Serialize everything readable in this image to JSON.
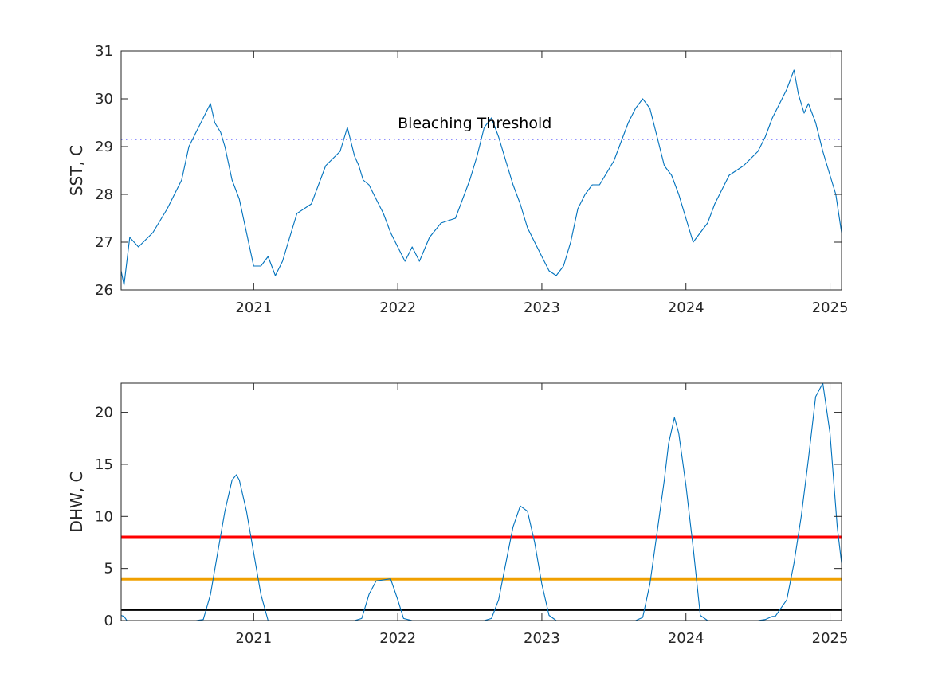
{
  "colors": {
    "series": "#0072bd",
    "threshold_line": "#6a6aff",
    "axes": "#262626",
    "dhw_red": "#ff0000",
    "dhw_orange": "#f0a000",
    "dhw_black": "#000000"
  },
  "chart_data": [
    {
      "type": "line",
      "title": "",
      "xlabel": "",
      "ylabel": "SST, C",
      "xlim": [
        2020.08,
        2025.08
      ],
      "ylim": [
        26,
        31
      ],
      "x_ticks": [
        2021,
        2022,
        2023,
        2024,
        2025
      ],
      "x_tick_labels": [
        "2021",
        "2022",
        "2023",
        "2024",
        "2025"
      ],
      "y_ticks": [
        26,
        27,
        28,
        29,
        30,
        31
      ],
      "y_tick_labels": [
        "26",
        "27",
        "28",
        "29",
        "30",
        "31"
      ],
      "grid": false,
      "series": [
        {
          "x": [
            2020.08,
            2020.1,
            2020.14,
            2020.2,
            2020.3,
            2020.4,
            2020.5,
            2020.55,
            2020.6,
            2020.65,
            2020.7,
            2020.73,
            2020.77,
            2020.8,
            2020.85,
            2020.9,
            2020.95,
            2021.0,
            2021.05,
            2021.1,
            2021.15,
            2021.2,
            2021.25,
            2021.3,
            2021.4,
            2021.5,
            2021.6,
            2021.65,
            2021.7,
            2021.73,
            2021.76,
            2021.8,
            2021.85,
            2021.9,
            2021.95,
            2022.0,
            2022.05,
            2022.1,
            2022.15,
            2022.22,
            2022.3,
            2022.4,
            2022.5,
            2022.55,
            2022.6,
            2022.65,
            2022.7,
            2022.72,
            2022.75,
            2022.8,
            2022.85,
            2022.9,
            2022.95,
            2023.0,
            2023.05,
            2023.1,
            2023.15,
            2023.2,
            2023.25,
            2023.3,
            2023.35,
            2023.4,
            2023.5,
            2023.6,
            2023.65,
            2023.7,
            2023.75,
            2023.8,
            2023.85,
            2023.9,
            2023.95,
            2024.0,
            2024.05,
            2024.1,
            2024.15,
            2024.2,
            2024.3,
            2024.4,
            2024.5,
            2024.55,
            2024.6,
            2024.65,
            2024.7,
            2024.75,
            2024.78,
            2024.82,
            2024.85,
            2024.9,
            2024.95,
            2025.0,
            2025.04,
            2025.08
          ],
          "y": [
            26.4,
            26.1,
            27.1,
            26.9,
            27.2,
            27.7,
            28.3,
            29.0,
            29.3,
            29.6,
            29.9,
            29.5,
            29.3,
            29.0,
            28.3,
            27.9,
            27.2,
            26.5,
            26.5,
            26.7,
            26.3,
            26.6,
            27.1,
            27.6,
            27.8,
            28.6,
            28.9,
            29.4,
            28.8,
            28.6,
            28.3,
            28.2,
            27.9,
            27.6,
            27.2,
            26.9,
            26.6,
            26.9,
            26.6,
            27.1,
            27.4,
            27.5,
            28.3,
            28.8,
            29.4,
            29.6,
            29.2,
            29.0,
            28.7,
            28.2,
            27.8,
            27.3,
            27.0,
            26.7,
            26.4,
            26.3,
            26.5,
            27.0,
            27.7,
            28.0,
            28.2,
            28.2,
            28.7,
            29.5,
            29.8,
            30.0,
            29.8,
            29.2,
            28.6,
            28.4,
            28.0,
            27.5,
            27.0,
            27.2,
            27.4,
            27.8,
            28.4,
            28.6,
            28.9,
            29.2,
            29.6,
            29.9,
            30.2,
            30.6,
            30.1,
            29.7,
            29.9,
            29.5,
            28.9,
            28.4,
            28.0,
            27.2
          ]
        }
      ],
      "reference_line": {
        "y": 29.15,
        "style": "dotted"
      },
      "annotations": [
        {
          "text": "Bleaching Threshold",
          "x": 2022.0,
          "y": 29.38
        }
      ]
    },
    {
      "type": "line",
      "title": "",
      "xlabel": "",
      "ylabel": "DHW, C",
      "xlim": [
        2020.08,
        2025.08
      ],
      "ylim": [
        0,
        22.8
      ],
      "x_ticks": [
        2021,
        2022,
        2023,
        2024,
        2025
      ],
      "x_tick_labels": [
        "2021",
        "2022",
        "2023",
        "2024",
        "2025"
      ],
      "y_ticks": [
        0,
        5,
        10,
        15,
        20
      ],
      "y_tick_labels": [
        "0",
        "5",
        "10",
        "15",
        "20"
      ],
      "grid": false,
      "series": [
        {
          "x": [
            2020.08,
            2020.1,
            2020.12,
            2020.5,
            2020.6,
            2020.65,
            2020.7,
            2020.75,
            2020.8,
            2020.85,
            2020.88,
            2020.9,
            2020.95,
            2021.0,
            2021.05,
            2021.1,
            2021.5,
            2021.7,
            2021.75,
            2021.8,
            2021.85,
            2021.95,
            2022.0,
            2022.04,
            2022.1,
            2022.6,
            2022.65,
            2022.7,
            2022.75,
            2022.8,
            2022.85,
            2022.9,
            2022.95,
            2023.0,
            2023.05,
            2023.1,
            2023.65,
            2023.7,
            2023.75,
            2023.8,
            2023.85,
            2023.88,
            2023.92,
            2023.95,
            2024.0,
            2024.05,
            2024.1,
            2024.15,
            2024.5,
            2024.55,
            2024.6,
            2024.62,
            2024.7,
            2024.75,
            2024.8,
            2024.85,
            2024.9,
            2024.95,
            2025.0,
            2025.05,
            2025.08
          ],
          "y": [
            0.5,
            0.4,
            0,
            0,
            0,
            0.1,
            2.5,
            6.5,
            10.5,
            13.5,
            14.0,
            13.5,
            10.5,
            6.5,
            2.5,
            0,
            0,
            0,
            0.2,
            2.5,
            3.8,
            4.0,
            2.0,
            0.2,
            0,
            0,
            0.2,
            2.0,
            5.5,
            9.0,
            11.0,
            10.5,
            7.5,
            3.5,
            0.5,
            0,
            0,
            0.3,
            3.5,
            8.5,
            13.5,
            17.0,
            19.5,
            18.0,
            13.0,
            7.0,
            0.5,
            0,
            0,
            0.1,
            0.4,
            0.4,
            2.0,
            5.5,
            10.0,
            15.5,
            21.5,
            22.8,
            18.0,
            9.0,
            5.5
          ]
        }
      ],
      "reference_lines": [
        {
          "y": 8,
          "color": "#ff0000"
        },
        {
          "y": 4,
          "color": "#f0a000"
        },
        {
          "y": 1,
          "color": "#000000"
        }
      ]
    }
  ]
}
